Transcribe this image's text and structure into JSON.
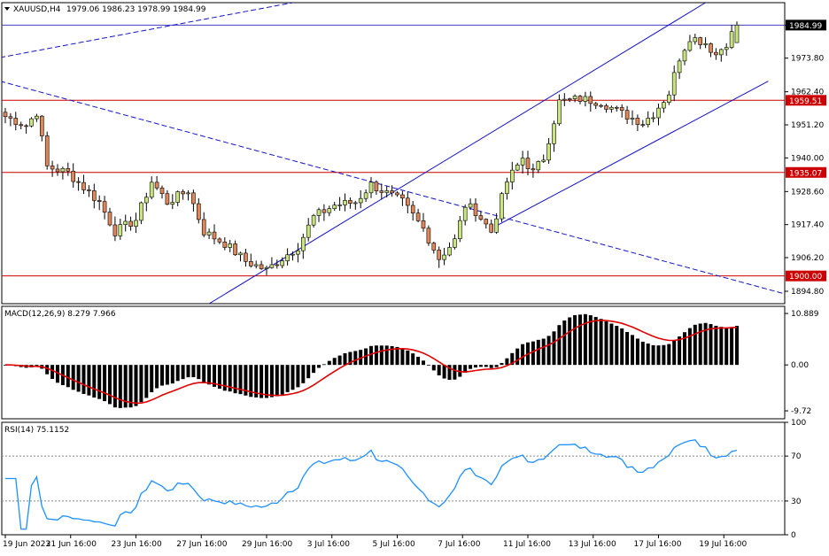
{
  "header": {
    "symbol": "XAUUSD,H4",
    "ohlc": "1979.06 1986.23 1978.99 1984.99"
  },
  "macd_header": "MACD(12,26,9) 8.279 7.966",
  "rsi_header": "RSI(14) 75.1152",
  "levels": [
    {
      "value": 1959.51,
      "label": "1959.51",
      "color": "#cc0000"
    },
    {
      "value": 1935.07,
      "label": "1935.07",
      "color": "#cc0000"
    },
    {
      "value": 1900.0,
      "label": "1900.00",
      "color": "#cc0000"
    },
    {
      "value": 1984.99,
      "label": "1984.99",
      "color": "#000000"
    }
  ],
  "colors": {
    "bull": "#c8e67d",
    "bear": "#e0875a",
    "wick": "#000000",
    "channel": "#1414c8",
    "macd_signal": "#e00000",
    "rsi_line": "#1e90ff"
  },
  "chart_data": [
    {
      "type": "candlestick",
      "title": "XAUUSD,H4",
      "ylim": [
        1890.6,
        1992.6
      ],
      "y_ticks": [
        1984.99,
        1973.8,
        1962.4,
        1951.2,
        1940.0,
        1928.6,
        1917.4,
        1906.2,
        1894.8
      ],
      "y_tick_labels": [
        "1984.99",
        "1973.80",
        "1962.40",
        "1951.20",
        "1940.00",
        "1928.60",
        "1917.40",
        "1906.20",
        "1894.80"
      ],
      "x_tick_labels": [
        "19 Jun 2023",
        "21 Jun 16:00",
        "23 Jun 16:00",
        "27 Jun 16:00",
        "29 Jun 16:00",
        "3 Jul 16:00",
        "5 Jul 16:00",
        "7 Jul 16:00",
        "11 Jul 16:00",
        "13 Jul 16:00",
        "17 Jul 16:00",
        "19 Jul 16:00"
      ],
      "anchors": [
        [
          0,
          1954.0
        ],
        [
          4,
          1951.0
        ],
        [
          6,
          1955.5
        ],
        [
          8,
          1937.0
        ],
        [
          12,
          1935.0
        ],
        [
          18,
          1925.0
        ],
        [
          21,
          1915.0
        ],
        [
          25,
          1919.0
        ],
        [
          28,
          1932.0
        ],
        [
          31,
          1925.0
        ],
        [
          35,
          1929.0
        ],
        [
          38,
          1915.0
        ],
        [
          42,
          1911.0
        ],
        [
          46,
          1905.0
        ],
        [
          50,
          1902.0
        ],
        [
          53,
          1906.0
        ],
        [
          56,
          1910.0
        ],
        [
          59,
          1920.0
        ],
        [
          63,
          1924.0
        ],
        [
          67,
          1925.0
        ],
        [
          70,
          1931.0
        ],
        [
          73,
          1928.0
        ],
        [
          76,
          1925.0
        ],
        [
          80,
          1916.0
        ],
        [
          83,
          1906.0
        ],
        [
          86,
          1912.0
        ],
        [
          88,
          1924.0
        ],
        [
          90,
          1922.0
        ],
        [
          93,
          1915.0
        ],
        [
          96,
          1932.0
        ],
        [
          99,
          1940.0
        ],
        [
          101,
          1935.0
        ],
        [
          103,
          1940.0
        ],
        [
          106,
          1959.0
        ],
        [
          110,
          1960.0
        ],
        [
          114,
          1959.0
        ],
        [
          118,
          1955.0
        ],
        [
          122,
          1952.0
        ],
        [
          124,
          1955.0
        ],
        [
          127,
          1962.0
        ],
        [
          129,
          1974.0
        ],
        [
          131,
          1981.0
        ],
        [
          134,
          1979.0
        ],
        [
          136,
          1975.0
        ],
        [
          138,
          1979.0
        ],
        [
          140,
          1984.99
        ]
      ]
    },
    {
      "type": "macd",
      "title": "MACD(12,26,9) 8.279 7.966",
      "ylim": [
        -11.4,
        12.4
      ],
      "y_tick_labels": [
        "10.889",
        "0.00",
        "-9.72"
      ],
      "y_ticks": [
        10.889,
        0.0,
        -9.72
      ],
      "last_histogram": 8.279,
      "last_signal": 7.966
    },
    {
      "type": "line",
      "title": "RSI(14) 75.1152",
      "ylim": [
        0,
        100
      ],
      "y_ticks": [
        100,
        70,
        30,
        0
      ],
      "y_tick_labels": [
        "100",
        "70",
        "30",
        "0"
      ],
      "last_value": 75.1152
    }
  ]
}
